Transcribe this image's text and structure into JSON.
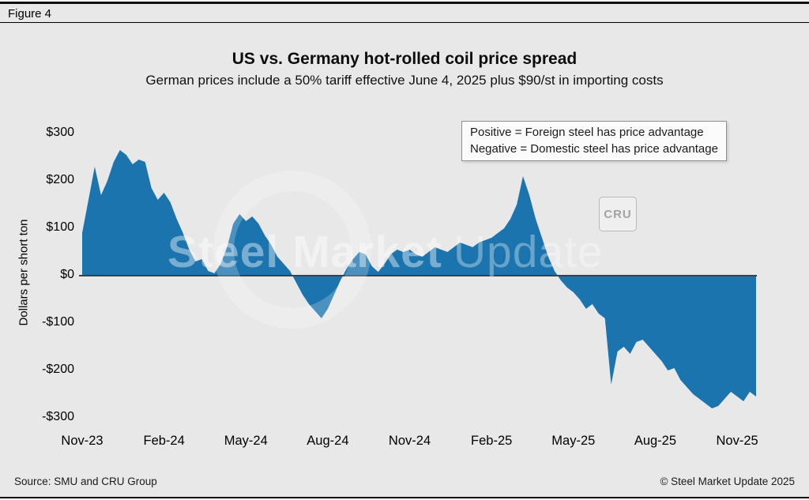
{
  "figure_label": "Figure 4",
  "title": "US vs. Germany hot-rolled coil price spread",
  "subtitle": "German prices include a 50% tariff effective June 4, 2025 plus $90/st in importing costs",
  "legend": {
    "line1": "Positive = Foreign steel has price advantage",
    "line2": "Negative = Domestic steel has price advantage"
  },
  "watermark": {
    "bold": "Steel Market",
    "light": "Update",
    "badge": "CRU"
  },
  "footer": {
    "source": "Source: SMU and CRU Group",
    "copyright": "© Steel Market Update 2025"
  },
  "chart_data": {
    "type": "area",
    "title": "US vs. Germany hot-rolled coil price spread",
    "subtitle": "German prices include a 50% tariff effective June 4, 2025 plus $90/st in importing costs",
    "xlabel": "",
    "ylabel": "Dollars per short ton",
    "ylim": [
      -300,
      300
    ],
    "grid": false,
    "legend_position": "top-right",
    "fill_color": "#1b74ae",
    "zero_line_color": "#404040",
    "y_ticks": [
      {
        "label": "$300",
        "value": 300
      },
      {
        "label": "$200",
        "value": 200
      },
      {
        "label": "$100",
        "value": 100
      },
      {
        "label": "$0",
        "value": 0
      },
      {
        "label": "-$100",
        "value": -100
      },
      {
        "label": "-$200",
        "value": -200
      },
      {
        "label": "-$300",
        "value": -300
      }
    ],
    "x_ticks": [
      {
        "label": "Nov-23",
        "index": 0
      },
      {
        "label": "Feb-24",
        "index": 13
      },
      {
        "label": "May-24",
        "index": 26
      },
      {
        "label": "Aug-24",
        "index": 39
      },
      {
        "label": "Nov-24",
        "index": 52
      },
      {
        "label": "Feb-25",
        "index": 65
      },
      {
        "label": "May-25",
        "index": 78
      },
      {
        "label": "Aug-25",
        "index": 91
      },
      {
        "label": "Nov-25",
        "index": 104
      }
    ],
    "x_unit": "weeks from Nov-2023",
    "values": [
      90,
      160,
      230,
      170,
      200,
      240,
      265,
      255,
      235,
      245,
      240,
      185,
      160,
      175,
      155,
      120,
      90,
      55,
      30,
      35,
      10,
      5,
      25,
      60,
      110,
      130,
      115,
      125,
      110,
      85,
      65,
      40,
      25,
      10,
      -15,
      -40,
      -60,
      -75,
      -90,
      -70,
      -40,
      -10,
      15,
      35,
      50,
      45,
      20,
      8,
      25,
      45,
      55,
      50,
      55,
      45,
      40,
      50,
      60,
      55,
      50,
      60,
      70,
      65,
      60,
      70,
      75,
      80,
      90,
      100,
      120,
      150,
      210,
      170,
      120,
      80,
      40,
      10,
      -10,
      -25,
      -35,
      -50,
      -70,
      -60,
      -80,
      -90,
      -230,
      -160,
      -150,
      -165,
      -140,
      -135,
      -150,
      -165,
      -180,
      -200,
      -195,
      -220,
      -235,
      -250,
      -260,
      -270,
      -280,
      -275,
      -260,
      -245,
      -255,
      -265,
      -245,
      -255
    ]
  }
}
